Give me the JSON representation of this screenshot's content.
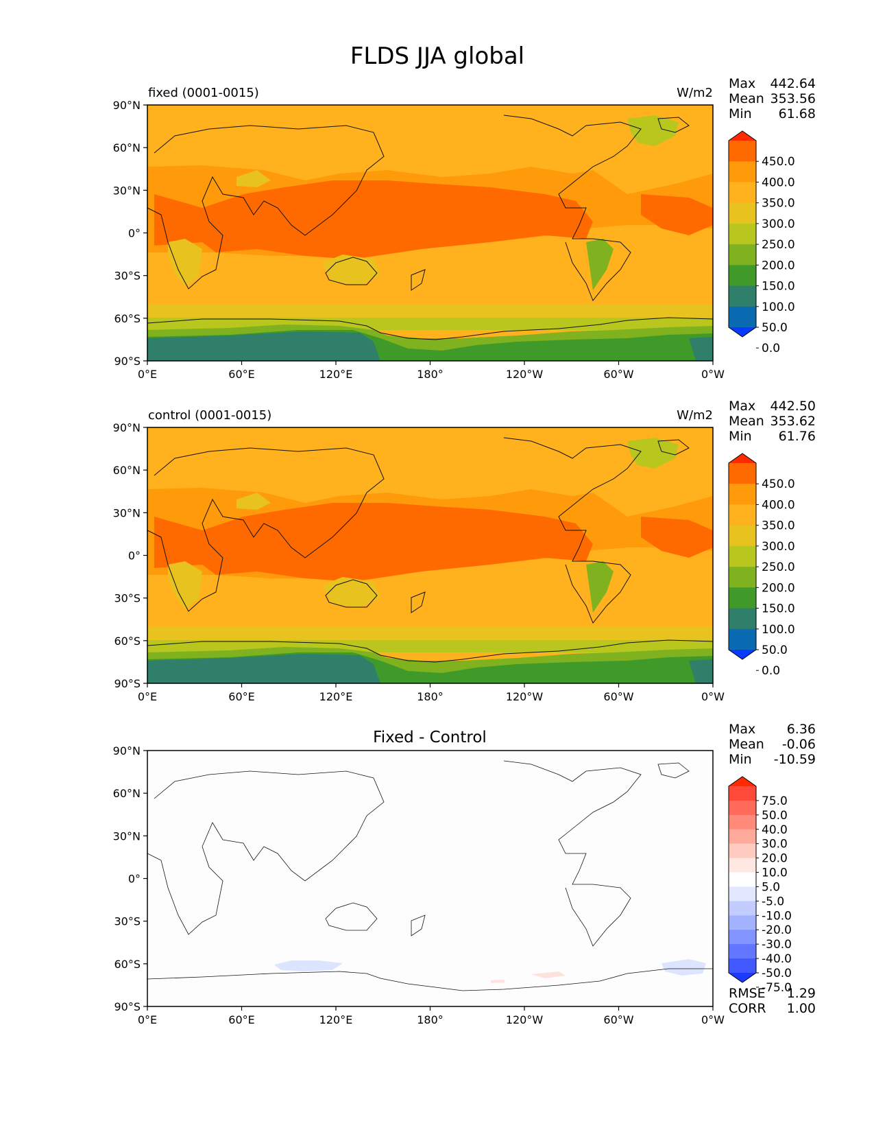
{
  "figure": {
    "title": "FLDS JJA global"
  },
  "axes": {
    "y_ticks": [
      "90°N",
      "60°N",
      "30°N",
      "0°",
      "30°S",
      "60°S",
      "90°S"
    ],
    "x_ticks": [
      "0°E",
      "60°E",
      "120°E",
      "180°",
      "120°W",
      "60°W",
      "0°W"
    ]
  },
  "panels": [
    {
      "id": "fixed",
      "left_title": "fixed (0001-0015)",
      "center_title": "",
      "units": "W/m2",
      "stats": [
        {
          "label": "Max",
          "value": "442.64"
        },
        {
          "label": "Mean",
          "value": "353.56"
        },
        {
          "label": "Min",
          "value": "61.68"
        }
      ],
      "colorbar": {
        "levels": [
          "450.0",
          "400.0",
          "350.0",
          "300.0",
          "250.0",
          "200.0",
          "150.0",
          "100.0",
          "50.0",
          "0.0"
        ],
        "colors": [
          "#ff2a00",
          "#ff6a00",
          "#ff9a0a",
          "#ffb21e",
          "#e8c21e",
          "#b8c61e",
          "#7fb21e",
          "#3f9a2a",
          "#2f7f6a",
          "#0a6ab2",
          "#0a3aff"
        ]
      }
    },
    {
      "id": "control",
      "left_title": "control (0001-0015)",
      "center_title": "",
      "units": "W/m2",
      "stats": [
        {
          "label": "Max",
          "value": "442.50"
        },
        {
          "label": "Mean",
          "value": "353.62"
        },
        {
          "label": "Min",
          "value": "61.76"
        }
      ],
      "colorbar": {
        "levels": [
          "450.0",
          "400.0",
          "350.0",
          "300.0",
          "250.0",
          "200.0",
          "150.0",
          "100.0",
          "50.0",
          "0.0"
        ],
        "colors": [
          "#ff2a00",
          "#ff6a00",
          "#ff9a0a",
          "#ffb21e",
          "#e8c21e",
          "#b8c61e",
          "#7fb21e",
          "#3f9a2a",
          "#2f7f6a",
          "#0a6ab2",
          "#0a3aff"
        ]
      }
    },
    {
      "id": "diff",
      "left_title": "",
      "center_title": "Fixed - Control",
      "units": "",
      "stats": [
        {
          "label": "Max",
          "value": "6.36"
        },
        {
          "label": "Mean",
          "value": "-0.06"
        },
        {
          "label": "Min",
          "value": "-10.59"
        }
      ],
      "extra_stats": [
        {
          "label": "RMSE",
          "value": "1.29"
        },
        {
          "label": "CORR",
          "value": "1.00"
        }
      ],
      "colorbar": {
        "levels": [
          "75.0",
          "50.0",
          "40.0",
          "30.0",
          "20.0",
          "10.0",
          "5.0",
          "-5.0",
          "-10.0",
          "-20.0",
          "-30.0",
          "-40.0",
          "-50.0",
          "-75.0"
        ],
        "colors": [
          "#ff2a00",
          "#ff4a3a",
          "#ff6a5a",
          "#ff8a7a",
          "#ffaa9a",
          "#ffcac0",
          "#ffe8e2",
          "#ffffff",
          "#e2e8ff",
          "#c2ccff",
          "#a2b2ff",
          "#8294ff",
          "#6276ff",
          "#4258ff",
          "#1a3aff"
        ]
      }
    }
  ]
}
